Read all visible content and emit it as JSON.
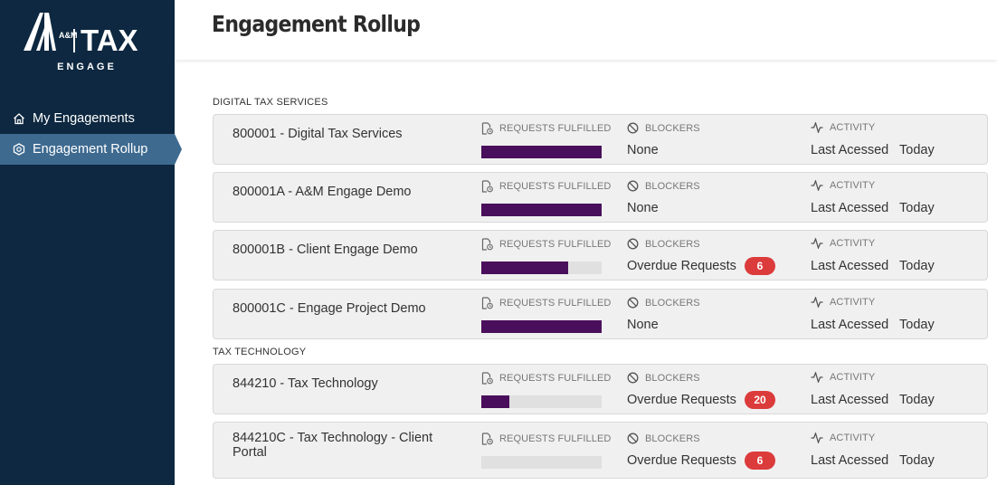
{
  "brand": {
    "am": "A&M",
    "tax": "TAX",
    "engage": "ENGAGE"
  },
  "sidebar": {
    "items": [
      {
        "label": "My Engagements",
        "icon": "home-icon",
        "active": false
      },
      {
        "label": "Engagement Rollup",
        "icon": "rollup-icon",
        "active": true
      }
    ]
  },
  "header": {
    "title": "Engagement Rollup"
  },
  "columns": {
    "requests": "REQUESTS FULFILLED",
    "blockers": "BLOCKERS",
    "activity": "ACTIVITY",
    "last_accessed": "Last Acessed"
  },
  "colors": {
    "sidebar": "#0d2840",
    "active_nav": "#3e6a90",
    "progress": "#4a0f5c",
    "badge": "#dc3b3b"
  },
  "groups": [
    {
      "label": "DIGITAL TAX SERVICES",
      "engagements": [
        {
          "title": "800001 - Digital Tax Services",
          "progress": 1.0,
          "blocker": "None",
          "badge": null,
          "activity": "Today"
        },
        {
          "title": "800001A - A&M Engage Demo",
          "progress": 1.0,
          "blocker": "None",
          "badge": null,
          "activity": "Today"
        },
        {
          "title": "800001B - Client Engage Demo",
          "progress": 0.72,
          "blocker": "Overdue Requests",
          "badge": "6",
          "activity": "Today"
        },
        {
          "title": "800001C - Engage Project Demo",
          "progress": 1.0,
          "blocker": "None",
          "badge": null,
          "activity": "Today"
        }
      ]
    },
    {
      "label": "TAX TECHNOLOGY",
      "engagements": [
        {
          "title": "844210 - Tax Technology",
          "progress": 0.23,
          "blocker": "Overdue Requests",
          "badge": "20",
          "activity": "Today"
        },
        {
          "title": "844210C - Tax Technology - Client Portal",
          "progress": 0.0,
          "blocker": "Overdue Requests",
          "badge": "6",
          "activity": "Today"
        }
      ]
    }
  ]
}
